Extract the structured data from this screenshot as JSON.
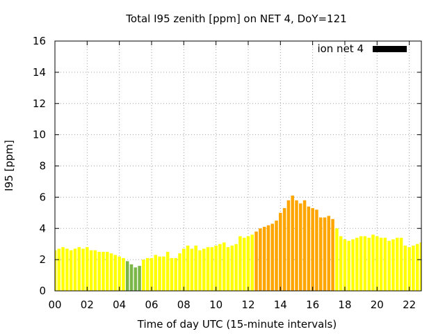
{
  "chart_data": {
    "type": "bar",
    "title": "Total I95 zenith [ppm] on NET 4, DoY=121",
    "xlabel": "Time of day UTC (15-minute intervals)",
    "ylabel": "I95 [ppm]",
    "ylim": [
      0,
      16
    ],
    "xlim": [
      0,
      22.75
    ],
    "yticks": [
      "0",
      "2",
      "4",
      "6",
      "8",
      "10",
      "12",
      "14",
      "16"
    ],
    "xticks": [
      "00",
      "02",
      "04",
      "06",
      "08",
      "10",
      "12",
      "14",
      "16",
      "18",
      "20",
      "22"
    ],
    "grid": true,
    "legend": {
      "label": "ion net 4",
      "color": "#000000",
      "placement": "top-right"
    },
    "colors": {
      "low": "#7ab648",
      "normal": "#ffff00",
      "elevated": "#ffa500"
    },
    "interval_hours": 0.25,
    "values": [
      2.6,
      2.7,
      2.8,
      2.7,
      2.6,
      2.7,
      2.8,
      2.7,
      2.8,
      2.6,
      2.6,
      2.5,
      2.5,
      2.5,
      2.4,
      2.3,
      2.2,
      2.1,
      1.9,
      1.7,
      1.5,
      1.6,
      2.0,
      2.1,
      2.1,
      2.3,
      2.2,
      2.2,
      2.5,
      2.1,
      2.1,
      2.4,
      2.7,
      2.9,
      2.7,
      2.9,
      2.6,
      2.7,
      2.8,
      2.8,
      2.9,
      3.0,
      3.1,
      2.8,
      2.9,
      3.0,
      3.5,
      3.4,
      3.5,
      3.6,
      3.8,
      4.0,
      4.1,
      4.2,
      4.3,
      4.5,
      5.0,
      5.3,
      5.8,
      6.1,
      5.8,
      5.6,
      5.8,
      5.4,
      5.3,
      5.2,
      4.7,
      4.7,
      4.8,
      4.6,
      4.0,
      3.5,
      3.3,
      3.2,
      3.3,
      3.4,
      3.5,
      3.5,
      3.4,
      3.6,
      3.5,
      3.4,
      3.4,
      3.2,
      3.3,
      3.4,
      3.4,
      2.9,
      2.8,
      2.9,
      3.0,
      3.1,
      3.2
    ],
    "levels": [
      "normal",
      "normal",
      "normal",
      "normal",
      "normal",
      "normal",
      "normal",
      "normal",
      "normal",
      "normal",
      "normal",
      "normal",
      "normal",
      "normal",
      "normal",
      "normal",
      "normal",
      "normal",
      "low",
      "low",
      "low",
      "low",
      "normal",
      "normal",
      "normal",
      "normal",
      "normal",
      "normal",
      "normal",
      "normal",
      "normal",
      "normal",
      "normal",
      "normal",
      "normal",
      "normal",
      "normal",
      "normal",
      "normal",
      "normal",
      "normal",
      "normal",
      "normal",
      "normal",
      "normal",
      "normal",
      "normal",
      "normal",
      "normal",
      "normal",
      "elevated",
      "elevated",
      "elevated",
      "elevated",
      "elevated",
      "elevated",
      "elevated",
      "elevated",
      "elevated",
      "elevated",
      "elevated",
      "elevated",
      "elevated",
      "elevated",
      "elevated",
      "elevated",
      "elevated",
      "elevated",
      "elevated",
      "elevated",
      "normal",
      "normal",
      "normal",
      "normal",
      "normal",
      "normal",
      "normal",
      "normal",
      "normal",
      "normal",
      "normal",
      "normal",
      "normal",
      "normal",
      "normal",
      "normal",
      "normal",
      "normal",
      "normal",
      "normal",
      "normal",
      "normal",
      "normal"
    ]
  }
}
